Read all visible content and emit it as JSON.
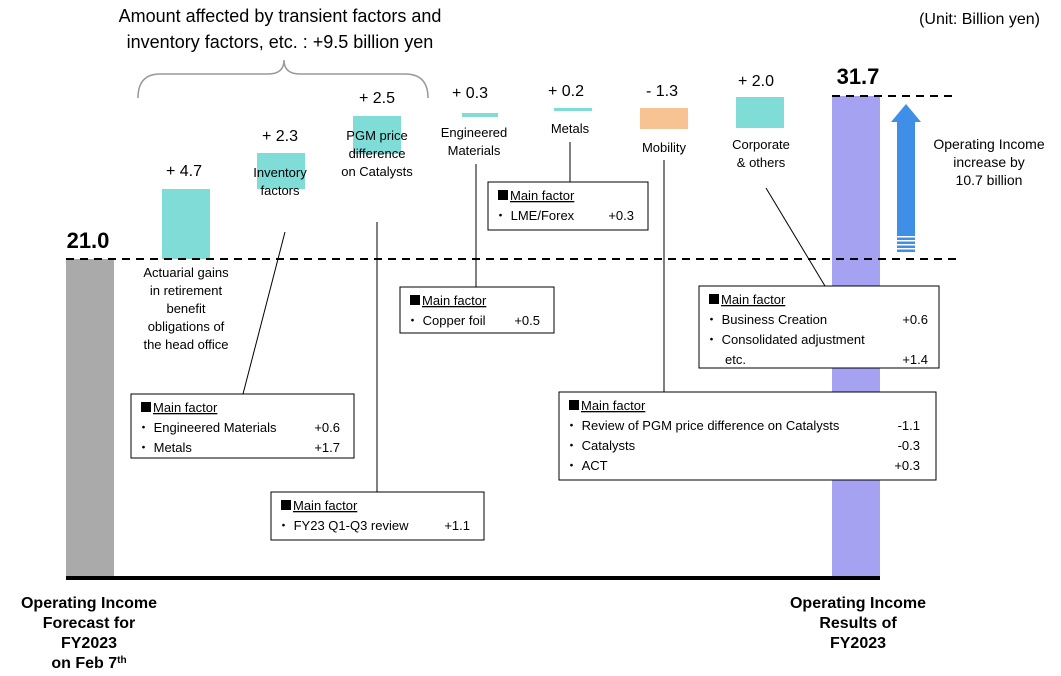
{
  "unit_label": "(Unit: Billion yen)",
  "transient_note": {
    "line1": "Amount affected by transient factors and",
    "line2": "inventory factors, etc. : +9.5 billion yen"
  },
  "start": {
    "value": 21.0,
    "value_label": "21.0",
    "label_lines": [
      "Operating Income",
      "Forecast for",
      "FY2023",
      "on Feb 7"
    ],
    "label_sup": "th",
    "color": "#aaaaaa"
  },
  "end": {
    "value": 31.7,
    "value_label": "31.7",
    "label_lines": [
      "Operating Income",
      "Results of",
      "FY2023"
    ],
    "color": "#a6a2f2"
  },
  "increase_note": {
    "lines": [
      "Operating Income",
      "increase by",
      "10.7 billion"
    ],
    "color": "#3f8fe8"
  },
  "colors": {
    "positive": "#7fdcd7",
    "negative": "#f8c393",
    "axis": "#000000"
  },
  "chart_data": {
    "type": "waterfall",
    "start_value": 21.0,
    "end_value": 31.7,
    "steps": [
      {
        "name": "Actuarial gains in retirement benefit obligations of the head office",
        "value": 4.7,
        "value_label": "+ 4.7",
        "label_lines": [
          "Actuarial gains",
          "in retirement",
          "benefit",
          "obligations of",
          "the head office"
        ]
      },
      {
        "name": "Inventory factors",
        "value": 2.3,
        "value_label": "+ 2.3",
        "label_lines": [
          "Inventory",
          "factors"
        ]
      },
      {
        "name": "PGM price difference on Catalysts",
        "value": 2.5,
        "value_label": "+ 2.5",
        "label_lines": [
          "PGM price",
          "difference",
          "on Catalysts"
        ]
      },
      {
        "name": "Engineered Materials",
        "value": 0.3,
        "value_label": "+ 0.3",
        "label_lines": [
          "Engineered",
          "Materials"
        ]
      },
      {
        "name": "Metals",
        "value": 0.2,
        "value_label": "+ 0.2",
        "label_lines": [
          "Metals"
        ]
      },
      {
        "name": "Mobility",
        "value": -1.3,
        "value_label": "- 1.3",
        "label_lines": [
          "Mobility"
        ]
      },
      {
        "name": "Corporate & others",
        "value": 2.0,
        "value_label": "+ 2.0",
        "label_lines": [
          "Corporate",
          "& others"
        ]
      }
    ]
  },
  "factor_boxes": [
    {
      "title": "Main factor",
      "rows": [
        {
          "label": "・ Engineered Materials",
          "value": "+0.6"
        },
        {
          "label": "・ Metals",
          "value": "+1.7"
        }
      ]
    },
    {
      "title": "Main factor",
      "rows": [
        {
          "label": "・ FY23 Q1-Q3 review",
          "value": "+1.1"
        }
      ]
    },
    {
      "title": "Main factor",
      "rows": [
        {
          "label": "・ Copper foil",
          "value": "+0.5"
        }
      ]
    },
    {
      "title": "Main factor",
      "rows": [
        {
          "label": "・ LME/Forex",
          "value": "+0.3"
        }
      ]
    },
    {
      "title": "Main factor",
      "rows": [
        {
          "label": "・ Review of PGM price difference on Catalysts",
          "value": "-1.1"
        },
        {
          "label": "・ Catalysts",
          "value": "-0.3"
        },
        {
          "label": "・ ACT",
          "value": "+0.3"
        }
      ]
    },
    {
      "title": "Main factor",
      "rows": [
        {
          "label": "・ Business Creation",
          "value": "+0.6"
        },
        {
          "label": "・ Consolidated adjustment",
          "value": ""
        },
        {
          "label": "etc.",
          "value": "+1.4"
        }
      ]
    }
  ]
}
